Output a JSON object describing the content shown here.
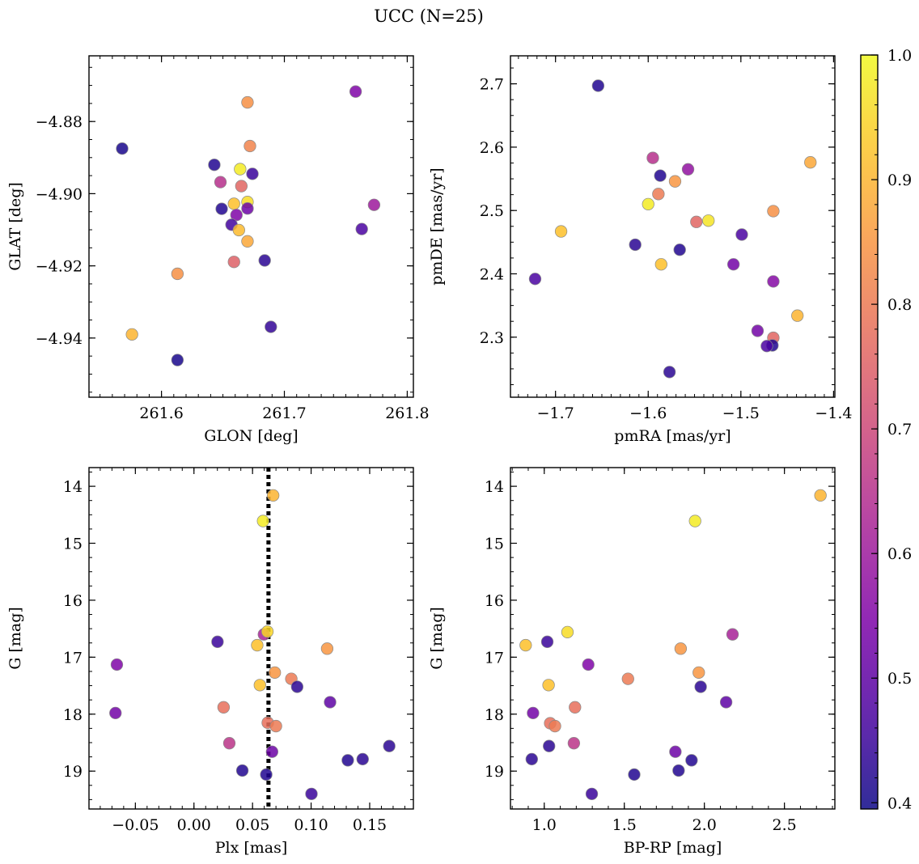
{
  "figure": {
    "title": "UCC (N=25)"
  },
  "colorbar": {
    "colormap": "plasma",
    "range": [
      0.395,
      1.0
    ],
    "ticks": [
      0.4,
      0.5,
      0.6,
      0.7,
      0.8,
      0.9,
      1.0
    ],
    "tick_labels": [
      "0.4",
      "0.5",
      "0.6",
      "0.7",
      "0.8",
      "0.9",
      "1.0"
    ]
  },
  "chart_data": [
    {
      "type": "scatter",
      "id": "glon-glat",
      "title": "",
      "xlabel": "GLON [deg]",
      "ylabel": "GLAT [deg]",
      "xlim": [
        261.541,
        261.805
      ],
      "ylim": [
        -4.9564,
        -4.8618
      ],
      "xticks": [
        261.6,
        261.7,
        261.8
      ],
      "xtick_labels": [
        "261.6",
        "261.7",
        "261.8"
      ],
      "yticks": [
        -4.88,
        -4.9,
        -4.92,
        -4.94
      ],
      "ytick_labels": [
        "−4.88",
        "−4.90",
        "−4.92",
        "−4.94"
      ],
      "grid": false,
      "points": [
        {
          "x": 261.67,
          "y": -4.8747,
          "c": 0.84
        },
        {
          "x": 261.672,
          "y": -4.8868,
          "c": 0.82
        },
        {
          "x": 261.758,
          "y": -4.8717,
          "c": 0.55
        },
        {
          "x": 261.568,
          "y": -4.8875,
          "c": 0.41
        },
        {
          "x": 261.643,
          "y": -4.892,
          "c": 0.42
        },
        {
          "x": 261.664,
          "y": -4.8932,
          "c": 0.98
        },
        {
          "x": 261.674,
          "y": -4.8945,
          "c": 0.45
        },
        {
          "x": 261.648,
          "y": -4.8968,
          "c": 0.65
        },
        {
          "x": 261.665,
          "y": -4.8979,
          "c": 0.76
        },
        {
          "x": 261.659,
          "y": -4.9028,
          "c": 0.92
        },
        {
          "x": 261.67,
          "y": -4.9023,
          "c": 0.96
        },
        {
          "x": 261.773,
          "y": -4.9031,
          "c": 0.6
        },
        {
          "x": 261.649,
          "y": -4.9042,
          "c": 0.42
        },
        {
          "x": 261.67,
          "y": -4.9041,
          "c": 0.52
        },
        {
          "x": 261.661,
          "y": -4.9059,
          "c": 0.55
        },
        {
          "x": 261.657,
          "y": -4.9086,
          "c": 0.46
        },
        {
          "x": 261.663,
          "y": -4.9101,
          "c": 0.91
        },
        {
          "x": 261.763,
          "y": -4.9098,
          "c": 0.47
        },
        {
          "x": 261.67,
          "y": -4.9132,
          "c": 0.88
        },
        {
          "x": 261.659,
          "y": -4.9189,
          "c": 0.75
        },
        {
          "x": 261.684,
          "y": -4.9185,
          "c": 0.43
        },
        {
          "x": 261.613,
          "y": -4.9222,
          "c": 0.84
        },
        {
          "x": 261.689,
          "y": -4.9369,
          "c": 0.44
        },
        {
          "x": 261.576,
          "y": -4.939,
          "c": 0.9
        },
        {
          "x": 261.613,
          "y": -4.9461,
          "c": 0.41
        }
      ]
    },
    {
      "type": "scatter",
      "id": "pmra-pmde",
      "title": "",
      "xlabel": "pmRA [mas/yr]",
      "ylabel": "pmDE [mas/yr]",
      "xlim": [
        -1.7486,
        -1.3986
      ],
      "ylim": [
        2.2052,
        2.7442
      ],
      "xticks": [
        -1.7,
        -1.6,
        -1.5,
        -1.4
      ],
      "xtick_labels": [
        "−1.7",
        "−1.6",
        "−1.5",
        "−1.4"
      ],
      "yticks": [
        2.3,
        2.4,
        2.5,
        2.6,
        2.7
      ],
      "ytick_labels": [
        "2.3",
        "2.4",
        "2.5",
        "2.6",
        "2.7"
      ],
      "grid": false,
      "points": [
        {
          "x": -1.654,
          "y": 2.697,
          "c": 0.42
        },
        {
          "x": -1.595,
          "y": 2.583,
          "c": 0.65
        },
        {
          "x": -1.557,
          "y": 2.565,
          "c": 0.58
        },
        {
          "x": -1.425,
          "y": 2.576,
          "c": 0.88
        },
        {
          "x": -1.587,
          "y": 2.555,
          "c": 0.42
        },
        {
          "x": -1.571,
          "y": 2.546,
          "c": 0.85
        },
        {
          "x": -1.589,
          "y": 2.526,
          "c": 0.8
        },
        {
          "x": -1.6,
          "y": 2.51,
          "c": 0.98
        },
        {
          "x": -1.465,
          "y": 2.499,
          "c": 0.84
        },
        {
          "x": -1.548,
          "y": 2.482,
          "c": 0.76
        },
        {
          "x": -1.535,
          "y": 2.484,
          "c": 0.97
        },
        {
          "x": -1.694,
          "y": 2.467,
          "c": 0.92
        },
        {
          "x": -1.499,
          "y": 2.462,
          "c": 0.47
        },
        {
          "x": -1.614,
          "y": 2.446,
          "c": 0.43
        },
        {
          "x": -1.566,
          "y": 2.438,
          "c": 0.42
        },
        {
          "x": -1.586,
          "y": 2.415,
          "c": 0.92
        },
        {
          "x": -1.508,
          "y": 2.415,
          "c": 0.53
        },
        {
          "x": -1.722,
          "y": 2.392,
          "c": 0.47
        },
        {
          "x": -1.465,
          "y": 2.388,
          "c": 0.56
        },
        {
          "x": -1.439,
          "y": 2.334,
          "c": 0.9
        },
        {
          "x": -1.482,
          "y": 2.31,
          "c": 0.53
        },
        {
          "x": -1.465,
          "y": 2.299,
          "c": 0.76
        },
        {
          "x": -1.466,
          "y": 2.287,
          "c": 0.42
        },
        {
          "x": -1.472,
          "y": 2.286,
          "c": 0.47
        },
        {
          "x": -1.577,
          "y": 2.245,
          "c": 0.43
        }
      ]
    },
    {
      "type": "scatter",
      "id": "plx-g",
      "title": "",
      "xlabel": "Plx [mas]",
      "ylabel": "G [mag]",
      "xlim": [
        -0.0896,
        0.1873
      ],
      "ylim": [
        19.665,
        13.672
      ],
      "y_inverted": true,
      "xticks": [
        -0.05,
        0.0,
        0.05,
        0.1,
        0.15
      ],
      "xtick_labels": [
        "−0.05",
        "0.00",
        "0.05",
        "0.10",
        "0.15"
      ],
      "yticks": [
        14,
        15,
        16,
        17,
        18,
        19
      ],
      "ytick_labels": [
        "14",
        "15",
        "16",
        "17",
        "18",
        "19"
      ],
      "grid": false,
      "reference_line": {
        "x": 0.0636,
        "style": "dotted"
      },
      "points": [
        {
          "x": 0.0676,
          "y": 14.16,
          "c": 0.9
        },
        {
          "x": 0.059,
          "y": 14.61,
          "c": 0.98
        },
        {
          "x": 0.0201,
          "y": 16.73,
          "c": 0.45
        },
        {
          "x": 0.0597,
          "y": 16.6,
          "c": 0.62
        },
        {
          "x": 0.0627,
          "y": 16.55,
          "c": 0.95
        },
        {
          "x": -0.0658,
          "y": 17.13,
          "c": 0.55
        },
        {
          "x": 0.054,
          "y": 16.79,
          "c": 0.92
        },
        {
          "x": 0.1137,
          "y": 16.85,
          "c": 0.85
        },
        {
          "x": 0.069,
          "y": 17.27,
          "c": 0.85
        },
        {
          "x": 0.0831,
          "y": 17.38,
          "c": 0.8
        },
        {
          "x": 0.0881,
          "y": 17.52,
          "c": 0.43
        },
        {
          "x": 0.0563,
          "y": 17.49,
          "c": 0.92
        },
        {
          "x": 0.1162,
          "y": 17.79,
          "c": 0.5
        },
        {
          "x": 0.0253,
          "y": 17.88,
          "c": 0.78
        },
        {
          "x": -0.067,
          "y": 17.98,
          "c": 0.53
        },
        {
          "x": 0.063,
          "y": 18.15,
          "c": 0.78
        },
        {
          "x": 0.07,
          "y": 18.21,
          "c": 0.8
        },
        {
          "x": 0.0302,
          "y": 18.51,
          "c": 0.66
        },
        {
          "x": 0.1667,
          "y": 18.56,
          "c": 0.43
        },
        {
          "x": 0.0667,
          "y": 18.66,
          "c": 0.52
        },
        {
          "x": 0.144,
          "y": 18.79,
          "c": 0.43
        },
        {
          "x": 0.1313,
          "y": 18.81,
          "c": 0.42
        },
        {
          "x": 0.0413,
          "y": 18.99,
          "c": 0.42
        },
        {
          "x": 0.0617,
          "y": 19.06,
          "c": 0.42
        },
        {
          "x": 0.1003,
          "y": 19.4,
          "c": 0.45
        }
      ]
    },
    {
      "type": "scatter",
      "id": "bprp-g",
      "title": "",
      "xlabel": "BP-RP [mag]",
      "ylabel": "G [mag]",
      "xlim": [
        0.789,
        2.815
      ],
      "ylim": [
        19.665,
        13.672
      ],
      "y_inverted": true,
      "xticks": [
        1.0,
        1.5,
        2.0,
        2.5
      ],
      "xtick_labels": [
        "1.0",
        "1.5",
        "2.0",
        "2.5"
      ],
      "yticks": [
        14,
        15,
        16,
        17,
        18,
        19
      ],
      "ytick_labels": [
        "14",
        "15",
        "16",
        "17",
        "18",
        "19"
      ],
      "grid": false,
      "points": [
        {
          "x": 2.725,
          "y": 14.16,
          "c": 0.9
        },
        {
          "x": 1.942,
          "y": 14.61,
          "c": 0.98
        },
        {
          "x": 1.145,
          "y": 16.56,
          "c": 0.96
        },
        {
          "x": 2.176,
          "y": 16.6,
          "c": 0.62
        },
        {
          "x": 1.019,
          "y": 16.73,
          "c": 0.45
        },
        {
          "x": 0.884,
          "y": 16.79,
          "c": 0.92
        },
        {
          "x": 1.852,
          "y": 16.85,
          "c": 0.85
        },
        {
          "x": 1.275,
          "y": 17.13,
          "c": 0.55
        },
        {
          "x": 1.965,
          "y": 17.27,
          "c": 0.85
        },
        {
          "x": 1.523,
          "y": 17.38,
          "c": 0.8
        },
        {
          "x": 1.027,
          "y": 17.49,
          "c": 0.92
        },
        {
          "x": 1.977,
          "y": 17.52,
          "c": 0.43
        },
        {
          "x": 2.136,
          "y": 17.79,
          "c": 0.5
        },
        {
          "x": 1.192,
          "y": 17.88,
          "c": 0.78
        },
        {
          "x": 0.93,
          "y": 17.98,
          "c": 0.53
        },
        {
          "x": 1.037,
          "y": 18.16,
          "c": 0.78
        },
        {
          "x": 1.067,
          "y": 18.21,
          "c": 0.8
        },
        {
          "x": 1.185,
          "y": 18.51,
          "c": 0.66
        },
        {
          "x": 1.03,
          "y": 18.56,
          "c": 0.43
        },
        {
          "x": 1.819,
          "y": 18.66,
          "c": 0.52
        },
        {
          "x": 1.92,
          "y": 18.81,
          "c": 0.42
        },
        {
          "x": 0.922,
          "y": 18.79,
          "c": 0.43
        },
        {
          "x": 1.839,
          "y": 18.99,
          "c": 0.42
        },
        {
          "x": 1.562,
          "y": 19.06,
          "c": 0.42
        },
        {
          "x": 1.297,
          "y": 19.4,
          "c": 0.45
        }
      ]
    }
  ]
}
